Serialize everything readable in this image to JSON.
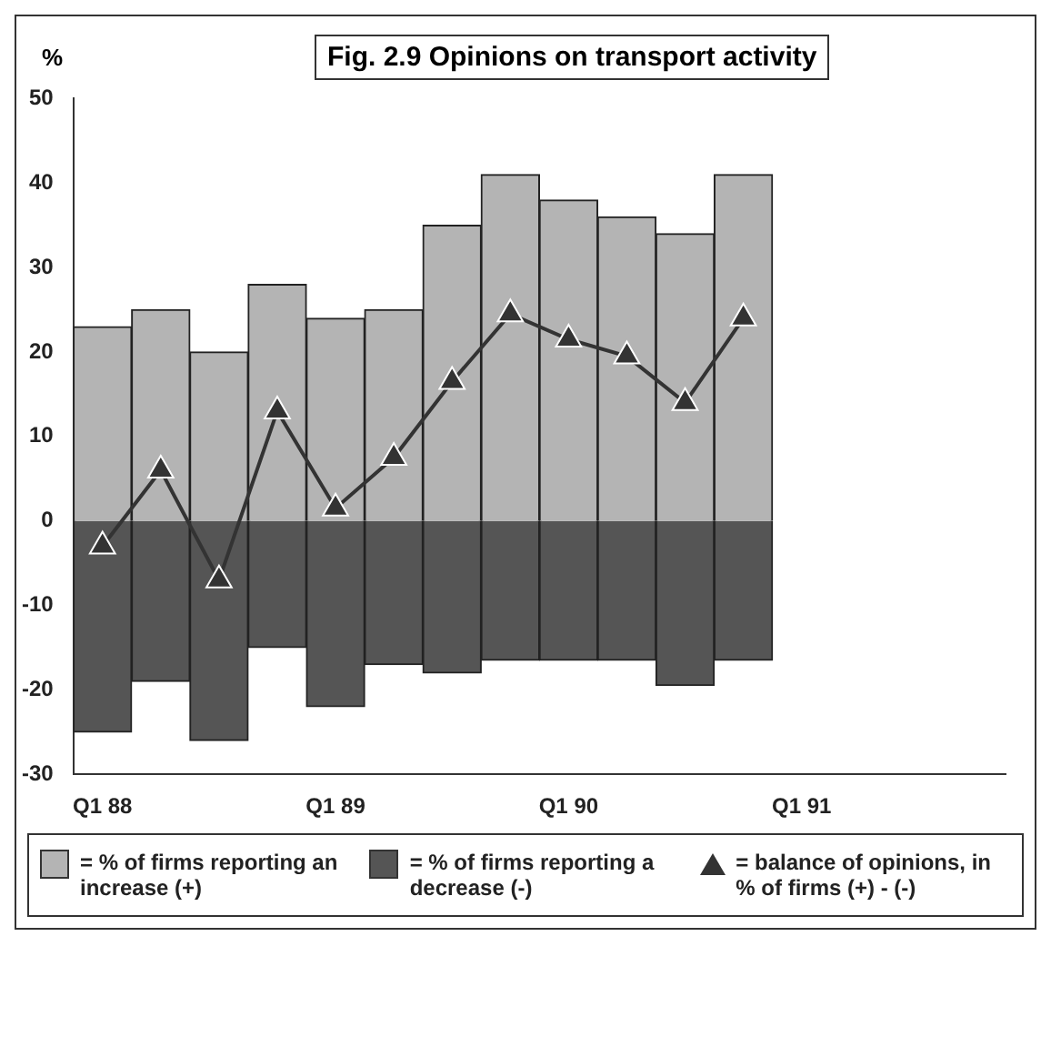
{
  "chart_data": {
    "type": "bar",
    "title": "Fig. 2.9 Opinions on transport activity",
    "ylabel": "%",
    "categories": [
      "Q1 88",
      null,
      null,
      null,
      "Q1 89",
      null,
      null,
      null,
      "Q1 90",
      null,
      null,
      null,
      "Q1 91",
      null,
      null,
      null
    ],
    "stacked": true,
    "series": [
      {
        "name": "= % of firms reporting an increase (+)",
        "color": "#b4b4b4",
        "values": [
          23,
          25,
          20,
          28,
          24,
          25,
          35,
          41,
          38,
          36,
          34,
          41,
          null,
          null,
          null,
          null
        ]
      },
      {
        "name": "= % of firms reporting a decrease (-)",
        "color": "#555555",
        "values": [
          -25,
          -19,
          -26,
          -15,
          -22,
          -17,
          -18,
          -16.5,
          -16.5,
          -16.5,
          -19.5,
          -16.5,
          null,
          null,
          null,
          null
        ]
      },
      {
        "name": "= balance of opinions, in % of firms (+) - (-)",
        "type": "line",
        "color": "#333333",
        "values": [
          -3,
          6,
          -7,
          13,
          1.5,
          7.5,
          16.5,
          24.5,
          21.5,
          19.5,
          14,
          24,
          null,
          null,
          null,
          null
        ]
      }
    ],
    "ylim": [
      -30,
      50
    ],
    "yticks": [
      -30,
      -20,
      -10,
      0,
      10,
      20,
      30,
      40,
      50
    ],
    "marker": "triangle",
    "grid": false,
    "legend": "bottom"
  }
}
